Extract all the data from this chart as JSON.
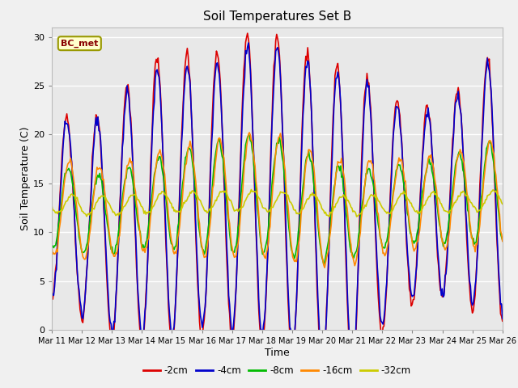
{
  "title": "Soil Temperatures Set B",
  "xlabel": "Time",
  "ylabel": "Soil Temperature (C)",
  "ylim": [
    0,
    31
  ],
  "yticks": [
    0,
    5,
    10,
    15,
    20,
    25,
    30
  ],
  "x_labels": [
    "Mar 11",
    "Mar 12",
    "Mar 13",
    "Mar 14",
    "Mar 15",
    "Mar 16",
    "Mar 17",
    "Mar 18",
    "Mar 19",
    "Mar 20",
    "Mar 21",
    "Mar 22",
    "Mar 23",
    "Mar 24",
    "Mar 25",
    "Mar 26"
  ],
  "series_labels": [
    "-2cm",
    "-4cm",
    "-8cm",
    "-16cm",
    "-32cm"
  ],
  "series_colors": [
    "#dd0000",
    "#0000cc",
    "#00bb00",
    "#ff8800",
    "#cccc00"
  ],
  "annotation_text": "BC_met",
  "annotation_bg": "#ffffcc",
  "annotation_border": "#999900",
  "fig_bg": "#f0f0f0",
  "plot_bg": "#e8e8e8",
  "n_points": 480,
  "days": 15
}
